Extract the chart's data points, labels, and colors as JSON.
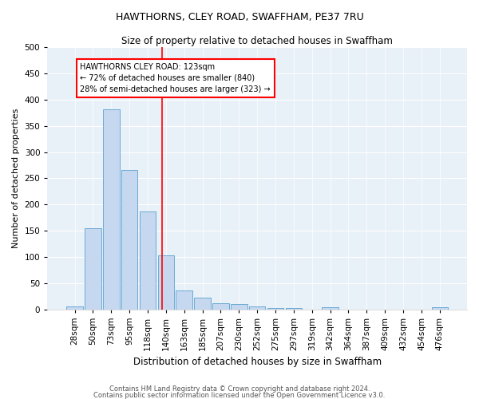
{
  "title": "HAWTHORNS, CLEY ROAD, SWAFFHAM, PE37 7RU",
  "subtitle": "Size of property relative to detached houses in Swaffham",
  "xlabel": "Distribution of detached houses by size in Swaffham",
  "ylabel": "Number of detached properties",
  "footnote1": "Contains HM Land Registry data © Crown copyright and database right 2024.",
  "footnote2": "Contains public sector information licensed under the Open Government Licence v3.0.",
  "categories": [
    "28sqm",
    "50sqm",
    "73sqm",
    "95sqm",
    "118sqm",
    "140sqm",
    "163sqm",
    "185sqm",
    "207sqm",
    "230sqm",
    "252sqm",
    "275sqm",
    "297sqm",
    "319sqm",
    "342sqm",
    "364sqm",
    "387sqm",
    "409sqm",
    "432sqm",
    "454sqm",
    "476sqm"
  ],
  "values": [
    5,
    155,
    382,
    265,
    187,
    103,
    36,
    22,
    12,
    10,
    5,
    3,
    2,
    0,
    4,
    0,
    0,
    0,
    0,
    0,
    4
  ],
  "bar_color": "#c5d8f0",
  "bar_edge_color": "#6aaad4",
  "background_color": "#e8f0f8",
  "red_line_index": 4.77,
  "annotation_text": "HAWTHORNS CLEY ROAD: 123sqm\n← 72% of detached houses are smaller (840)\n28% of semi-detached houses are larger (323) →",
  "annotation_box_color": "white",
  "annotation_box_edge_color": "red",
  "ylim": [
    0,
    500
  ],
  "yticks": [
    0,
    50,
    100,
    150,
    200,
    250,
    300,
    350,
    400,
    450,
    500
  ],
  "title_fontsize": 9,
  "subtitle_fontsize": 8.5,
  "ylabel_fontsize": 8,
  "xlabel_fontsize": 8.5,
  "tick_fontsize": 7.5,
  "annot_fontsize": 7,
  "footnote_fontsize": 6
}
